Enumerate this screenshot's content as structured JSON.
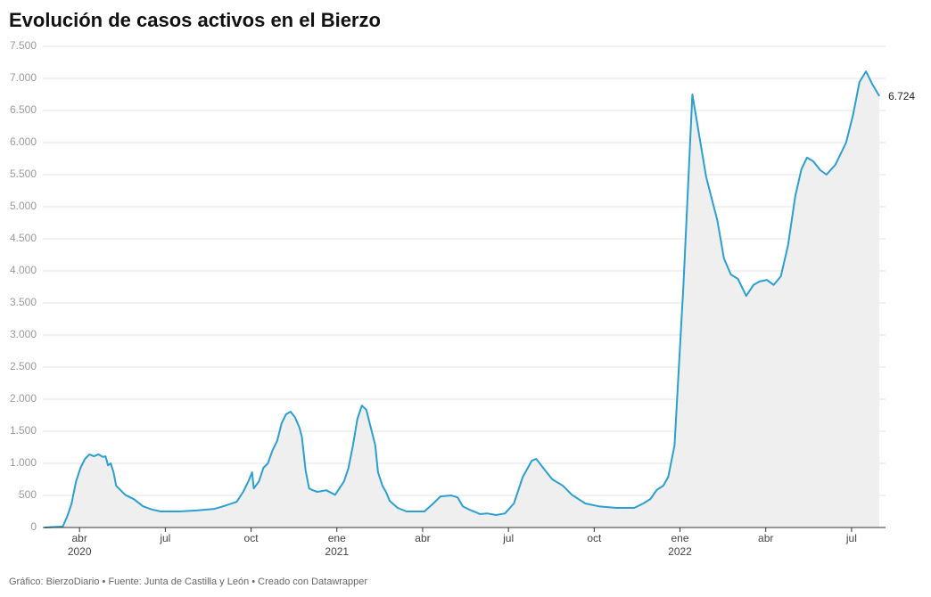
{
  "chart_data": {
    "type": "area",
    "title": "Evolución de casos activos en el Bierzo",
    "source": "Gráfico: BierzoDiario • Fuente: Junta de Castilla y León • Creado con Datawrapper",
    "x": [
      2020.148,
      2020.201,
      2020.214,
      2020.227,
      2020.24,
      2020.253,
      2020.266,
      2020.279,
      2020.292,
      2020.305,
      2020.318,
      2020.326,
      2020.333,
      2020.341,
      2020.349,
      2020.357,
      2020.37,
      2020.383,
      2020.409,
      2020.435,
      2020.461,
      2020.487,
      2020.539,
      2020.591,
      2020.643,
      2020.669,
      2020.708,
      2020.727,
      2020.742,
      2020.753,
      2020.758,
      2020.773,
      2020.786,
      2020.799,
      2020.813,
      2020.826,
      2020.839,
      2020.852,
      2020.865,
      2020.878,
      2020.891,
      2020.898,
      2020.909,
      2020.919,
      2020.93,
      2020.943,
      2020.969,
      2020.995,
      2021.021,
      2021.034,
      2021.047,
      2021.06,
      2021.073,
      2021.086,
      2021.099,
      2021.112,
      2021.12,
      2021.133,
      2021.143,
      2021.154,
      2021.177,
      2021.203,
      2021.255,
      2021.281,
      2021.302,
      2021.333,
      2021.352,
      2021.367,
      2021.385,
      2021.406,
      2021.417,
      2021.438,
      2021.464,
      2021.49,
      2021.516,
      2021.542,
      2021.568,
      2021.581,
      2021.607,
      2021.628,
      2021.659,
      2021.685,
      2021.724,
      2021.763,
      2021.815,
      2021.867,
      2021.893,
      2021.914,
      2021.932,
      2021.951,
      2021.966,
      2021.984,
      2022.01,
      2022.036,
      2022.076,
      2022.109,
      2022.128,
      2022.148,
      2022.169,
      2022.193,
      2022.214,
      2022.232,
      2022.253,
      2022.273,
      2022.294,
      2022.315,
      2022.336,
      2022.354,
      2022.37,
      2022.388,
      2022.409,
      2022.427,
      2022.453,
      2022.484,
      2022.505,
      2022.523,
      2022.542,
      2022.56,
      2022.581
    ],
    "series": [
      {
        "name": "Casos activos",
        "color": "#2a9fd0",
        "fill": "#efefef",
        "values": [
          0,
          14,
          170,
          375,
          720,
          930,
          1070,
          1140,
          1110,
          1140,
          1100,
          1110,
          970,
          1000,
          860,
          650,
          580,
          510,
          440,
          330,
          280,
          250,
          250,
          265,
          290,
          330,
          400,
          555,
          720,
          860,
          610,
          720,
          930,
          1000,
          1210,
          1350,
          1625,
          1765,
          1805,
          1720,
          1555,
          1415,
          890,
          610,
          580,
          555,
          580,
          510,
          720,
          930,
          1280,
          1695,
          1900,
          1835,
          1555,
          1280,
          860,
          650,
          555,
          415,
          305,
          250,
          250,
          375,
          485,
          500,
          470,
          330,
          280,
          235,
          210,
          220,
          195,
          220,
          375,
          790,
          1040,
          1070,
          890,
          750,
          650,
          510,
          375,
          330,
          305,
          305,
          375,
          445,
          585,
          650,
          790,
          1280,
          3780,
          6750,
          5470,
          4780,
          4195,
          3945,
          3875,
          3610,
          3780,
          3835,
          3860,
          3780,
          3915,
          4400,
          5165,
          5585,
          5765,
          5710,
          5570,
          5500,
          5655,
          6000,
          6445,
          6945,
          7110,
          6915,
          6724
        ],
        "value_labels": [
          null,
          null,
          null,
          null,
          null,
          null,
          null,
          null,
          null,
          null,
          null,
          null,
          null,
          null,
          null,
          null,
          null,
          null,
          null,
          null,
          null,
          null,
          null,
          null,
          null,
          null,
          null,
          null,
          null,
          null,
          null,
          null,
          null,
          null,
          null,
          null,
          null,
          null,
          null,
          null,
          null,
          null,
          null,
          null,
          null,
          null,
          null,
          null,
          null,
          null,
          null,
          null,
          null,
          null,
          null,
          null,
          null,
          null,
          null,
          null,
          null,
          null,
          null,
          null,
          null,
          null,
          null,
          null,
          null,
          null,
          null,
          null,
          null,
          null,
          null,
          null,
          null,
          null,
          null,
          null,
          null,
          null,
          null,
          null,
          null,
          null,
          null,
          null,
          null,
          null,
          null,
          null,
          null,
          null,
          null,
          null,
          null,
          null,
          null,
          null,
          null,
          null,
          null,
          null,
          null,
          null,
          null,
          null,
          null,
          null,
          null,
          null,
          null,
          null,
          null,
          null,
          null,
          null,
          "6.724"
        ]
      }
    ],
    "xlim": [
      2020.143,
      2022.599
    ],
    "xticks": [
      {
        "value": 2020.25,
        "label": "abr"
      },
      {
        "value": 2020.5,
        "label": "jul"
      },
      {
        "value": 2020.75,
        "label": "oct"
      },
      {
        "value": 2021,
        "label": "ene"
      },
      {
        "value": 2021.25,
        "label": "abr"
      },
      {
        "value": 2021.5,
        "label": "jul"
      },
      {
        "value": 2021.75,
        "label": "oct"
      },
      {
        "value": 2022,
        "label": "ene"
      },
      {
        "value": 2022.25,
        "label": "abr"
      },
      {
        "value": 2022.5,
        "label": "jul"
      }
    ],
    "xtick_years": [
      {
        "value": 2020.25,
        "label": "2020"
      },
      {
        "value": 2021,
        "label": "2021"
      },
      {
        "value": 2022,
        "label": "2022"
      }
    ],
    "ylim": [
      0,
      7500
    ],
    "yticks": [
      0,
      500,
      {
        "value": 1000,
        "label": "1.000"
      },
      {
        "value": 1500,
        "label": "1.500"
      },
      {
        "value": 2000,
        "label": "2.000"
      },
      {
        "value": 2500,
        "label": "2.500"
      },
      {
        "value": 3000,
        "label": "3.000"
      },
      {
        "value": 3500,
        "label": "3.500"
      },
      {
        "value": 4000,
        "label": "4.000"
      },
      {
        "value": 4500,
        "label": "4.500"
      },
      {
        "value": 5000,
        "label": "5.000"
      },
      {
        "value": 5500,
        "label": "5.500"
      },
      {
        "value": 6000,
        "label": "6.000"
      },
      {
        "value": 6500,
        "label": "6.500"
      },
      {
        "value": 7000,
        "label": "7.000"
      },
      {
        "value": 7500,
        "label": "7.500"
      }
    ],
    "grid": true
  }
}
